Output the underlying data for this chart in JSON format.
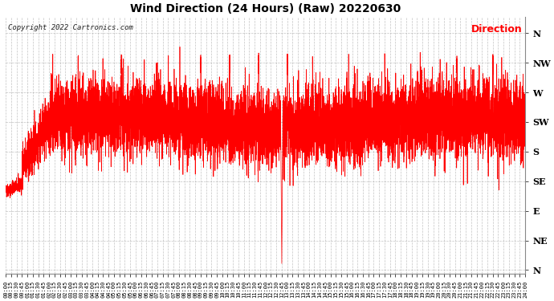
{
  "title": "Wind Direction (24 Hours) (Raw) 20220630",
  "copyright": "Copyright 2022 Cartronics.com",
  "legend_label": "Direction",
  "legend_color": "#ff0000",
  "line_color": "#ff0000",
  "background_color": "#ffffff",
  "grid_color": "#aaaaaa",
  "ytick_labels": [
    "N",
    "NW",
    "W",
    "SW",
    "S",
    "SE",
    "E",
    "NE",
    "N"
  ],
  "ytick_values": [
    360,
    315,
    270,
    225,
    180,
    135,
    90,
    45,
    0
  ],
  "ylim": [
    -5,
    385
  ],
  "xtick_interval_minutes": 15,
  "total_minutes": 1440,
  "seed": 42
}
